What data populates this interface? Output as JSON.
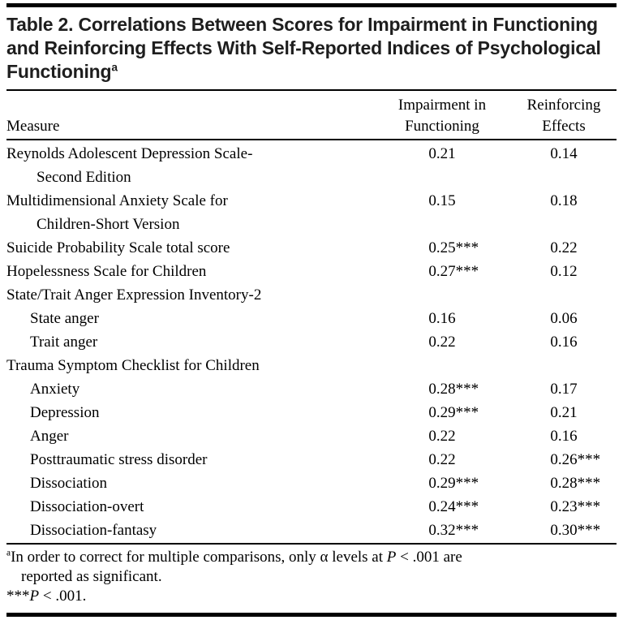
{
  "colors": {
    "background": "#ffffff",
    "rule_color": "#000000",
    "title_color": "#1e1e1e"
  },
  "table": {
    "title": "Table 2. Correlations Between Scores for Impairment in Functioning and Reinforcing Effects With Self-Reported Indices of Psychological Functioning",
    "title_superscript": "a",
    "columns": {
      "measure": "Measure",
      "impairment_line1": "Impairment in",
      "impairment_line2": "Functioning",
      "reinforcing_line1": "Reinforcing",
      "reinforcing_line2": "Effects"
    },
    "rows": [
      {
        "label": "Reynolds Adolescent Depression Scale-",
        "label2": "Second Edition",
        "impairment": "0.21",
        "reinforcing": "0.14"
      },
      {
        "label": "Multidimensional Anxiety Scale for",
        "label2": "Children-Short Version",
        "impairment": "0.15",
        "reinforcing": "0.18"
      },
      {
        "label": "Suicide Probability Scale total score",
        "impairment": "0.25",
        "impairment_stars": "***",
        "reinforcing": "0.22"
      },
      {
        "label": "Hopelessness Scale for Children",
        "impairment": "0.27",
        "impairment_stars": "***",
        "reinforcing": "0.12"
      },
      {
        "label": "State/Trait Anger Expression Inventory-2"
      },
      {
        "label": "State anger",
        "indent": true,
        "impairment": "0.16",
        "reinforcing": "0.06"
      },
      {
        "label": "Trait anger",
        "indent": true,
        "impairment": "0.22",
        "reinforcing": "0.16"
      },
      {
        "label": "Trauma Symptom Checklist for Children"
      },
      {
        "label": "Anxiety",
        "indent": true,
        "impairment": "0.28",
        "impairment_stars": "***",
        "reinforcing": "0.17"
      },
      {
        "label": "Depression",
        "indent": true,
        "impairment": "0.29",
        "impairment_stars": "***",
        "reinforcing": "0.21"
      },
      {
        "label": "Anger",
        "indent": true,
        "impairment": "0.22",
        "reinforcing": "0.16"
      },
      {
        "label": "Posttraumatic stress disorder",
        "indent": true,
        "impairment": "0.22",
        "reinforcing": "0.26",
        "reinforcing_stars": "***"
      },
      {
        "label": "Dissociation",
        "indent": true,
        "impairment": "0.29",
        "impairment_stars": "***",
        "reinforcing": "0.28",
        "reinforcing_stars": "***"
      },
      {
        "label": "Dissociation-overt",
        "indent": true,
        "impairment": "0.24",
        "impairment_stars": "***",
        "reinforcing": "0.23",
        "reinforcing_stars": "***"
      },
      {
        "label": "Dissociation-fantasy",
        "indent": true,
        "impairment": "0.32",
        "impairment_stars": "***",
        "reinforcing": "0.30",
        "reinforcing_stars": "***"
      }
    ],
    "footnotes": {
      "a_superscript": "a",
      "a_text_pre": "In order to correct for multiple comparisons, only α levels at ",
      "a_p": "P",
      "a_text_post": " < .001 are",
      "a_line2": "reported as significant.",
      "sig_stars": "***",
      "sig_p": "P",
      "sig_text": " < .001."
    }
  }
}
